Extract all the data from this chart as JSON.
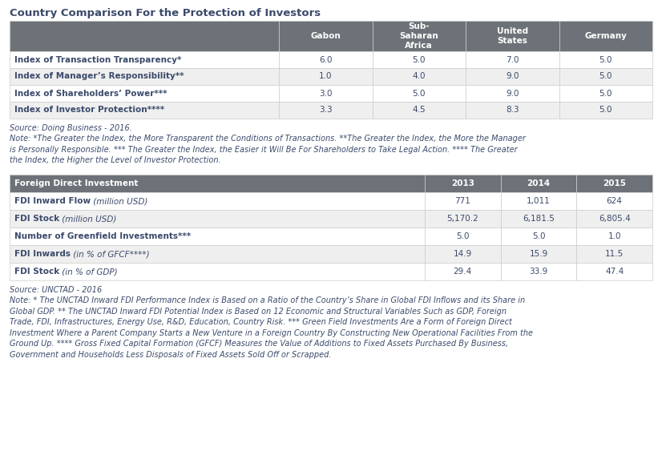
{
  "main_title": "Country Comparison For the Protection of Investors",
  "table1_header": [
    "",
    "Gabon",
    "Sub-\nSaharan\nAfrica",
    "United\nStates",
    "Germany"
  ],
  "table1_rows": [
    [
      "Index of Transaction Transparency*",
      "6.0",
      "5.0",
      "7.0",
      "5.0"
    ],
    [
      "Index of Manager’s Responsibility**",
      "1.0",
      "4.0",
      "9.0",
      "5.0"
    ],
    [
      "Index of Shareholders’ Power***",
      "3.0",
      "5.0",
      "9.0",
      "5.0"
    ],
    [
      "Index of Investor Protection****",
      "3.3",
      "4.5",
      "8.3",
      "5.0"
    ]
  ],
  "source1": "Source: Doing Business - 2016.",
  "note1": "Note: *The Greater the Index, the More Transparent the Conditions of Transactions. **The Greater the Index, the More the Manager\nis Personally Responsible. *** The Greater the Index, the Easier it Will Be For Shareholders to Take Legal Action. **** The Greater\nthe Index, the Higher the Level of Investor Protection.",
  "table2_header": [
    "Foreign Direct Investment",
    "2013",
    "2014",
    "2015"
  ],
  "table2_rows": [
    [
      "FDI Inward Flow",
      " (million USD)",
      "771",
      "1,011",
      "624"
    ],
    [
      "FDI Stock",
      " (million USD)",
      "5,170.2",
      "6,181.5",
      "6,805.4"
    ],
    [
      "Number of Greenfield Investments***",
      "",
      "5.0",
      "5.0",
      "1.0"
    ],
    [
      "FDI Inwards",
      " (in % of GFCF****)",
      "14.9",
      "15.9",
      "11.5"
    ],
    [
      "FDI Stock",
      " (in % of GDP)",
      "29.4",
      "33.9",
      "47.4"
    ]
  ],
  "source2": "Source: UNCTAD - 2016",
  "note2": "Note: * The UNCTAD Inward FDI Performance Index is Based on a Ratio of the Country’s Share in Global FDI Inflows and its Share in\nGlobal GDP. ** The UNCTAD Inward FDI Potential Index is Based on 12 Economic and Structural Variables Such as GDP, Foreign\nTrade, FDI, Infrastructures, Energy Use, R&D, Education, Country Risk. *** Green Field Investments Are a Form of Foreign Direct\nInvestment Where a Parent Company Starts a New Venture in a Foreign Country By Constructing New Operational Facilities From the\nGround Up. **** Gross Fixed Capital Formation (GFCF) Measures the Value of Additions to Fixed Assets Purchased By Business,\nGovernment and Households Less Disposals of Fixed Assets Sold Off or Scrapped.",
  "header_bg": "#6d7278",
  "header_fg": "#ffffff",
  "row_bg_odd": "#ffffff",
  "row_bg_even": "#efefef",
  "border_color": "#cccccc",
  "text_color": "#3b4a6b",
  "note_color": "#3b4a6b",
  "title_color": "#3b4a6b"
}
